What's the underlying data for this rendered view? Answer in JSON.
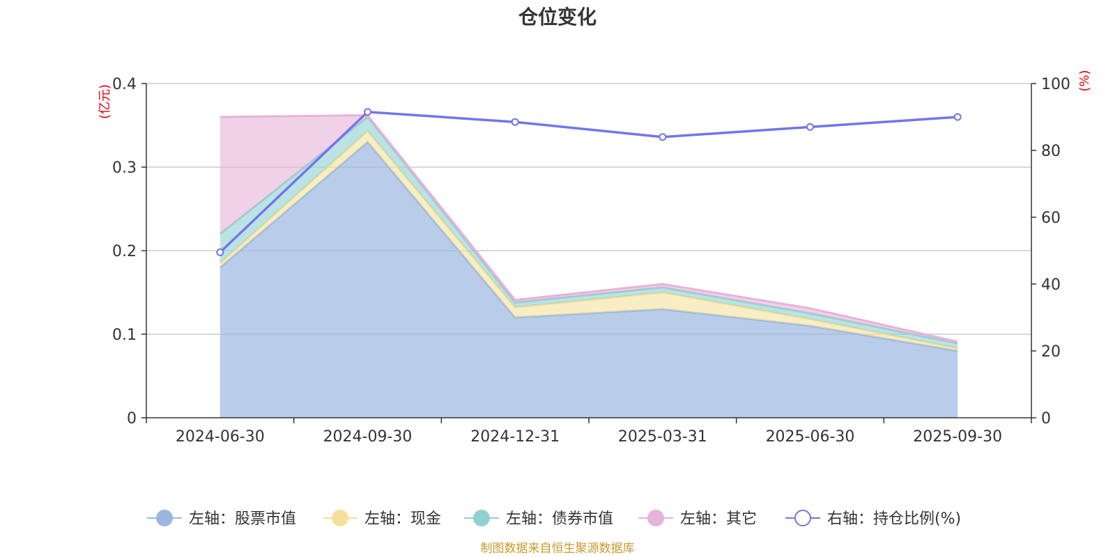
{
  "chart_data": {
    "type": "area",
    "title": "仓位变化",
    "categories": [
      "2024-06-30",
      "2024-09-30",
      "2024-12-31",
      "2025-03-31",
      "2025-06-30",
      "2025-09-30"
    ],
    "left_axis": {
      "unit": "(亿元)",
      "ylim": [
        0,
        0.4
      ],
      "ticks": [
        "0",
        "0.1",
        "0.2",
        "0.3",
        "0.4"
      ]
    },
    "right_axis": {
      "unit": "(%)",
      "ylim": [
        0,
        100
      ],
      "ticks": [
        "0",
        "20",
        "40",
        "60",
        "80",
        "100"
      ]
    },
    "series": [
      {
        "name": "左轴：股票市值",
        "axis": "left",
        "kind": "stacked-area",
        "values": [
          0.18,
          0.33,
          0.12,
          0.13,
          0.11,
          0.08
        ]
      },
      {
        "name": "左轴：现金",
        "axis": "left",
        "kind": "stacked-area",
        "values": [
          0.005,
          0.013,
          0.012,
          0.02,
          0.008,
          0.003
        ]
      },
      {
        "name": "左轴：债券市值",
        "axis": "left",
        "kind": "stacked-area",
        "values": [
          0.035,
          0.017,
          0.006,
          0.006,
          0.007,
          0.006
        ]
      },
      {
        "name": "左轴：其它",
        "axis": "left",
        "kind": "stacked-area",
        "values": [
          0.14,
          0.002,
          0.003,
          0.004,
          0.006,
          0.002
        ]
      },
      {
        "name": "右轴：持仓比例(%)",
        "axis": "right",
        "kind": "line",
        "values": [
          49.5,
          91.5,
          88.5,
          84.0,
          87.0,
          90.0
        ]
      }
    ],
    "colors": {
      "股票市值": "#9bb7e0",
      "现金": "#f5e19b",
      "债券市值": "#8fd1d0",
      "其它": "#e6b3d9",
      "持仓比例": "#7474ee",
      "grid": "#cccccc",
      "axis": "#333333",
      "unit": "#e8000b"
    },
    "grid": true,
    "legend_position": "bottom"
  },
  "source": "制图数据来自恒生聚源数据库"
}
